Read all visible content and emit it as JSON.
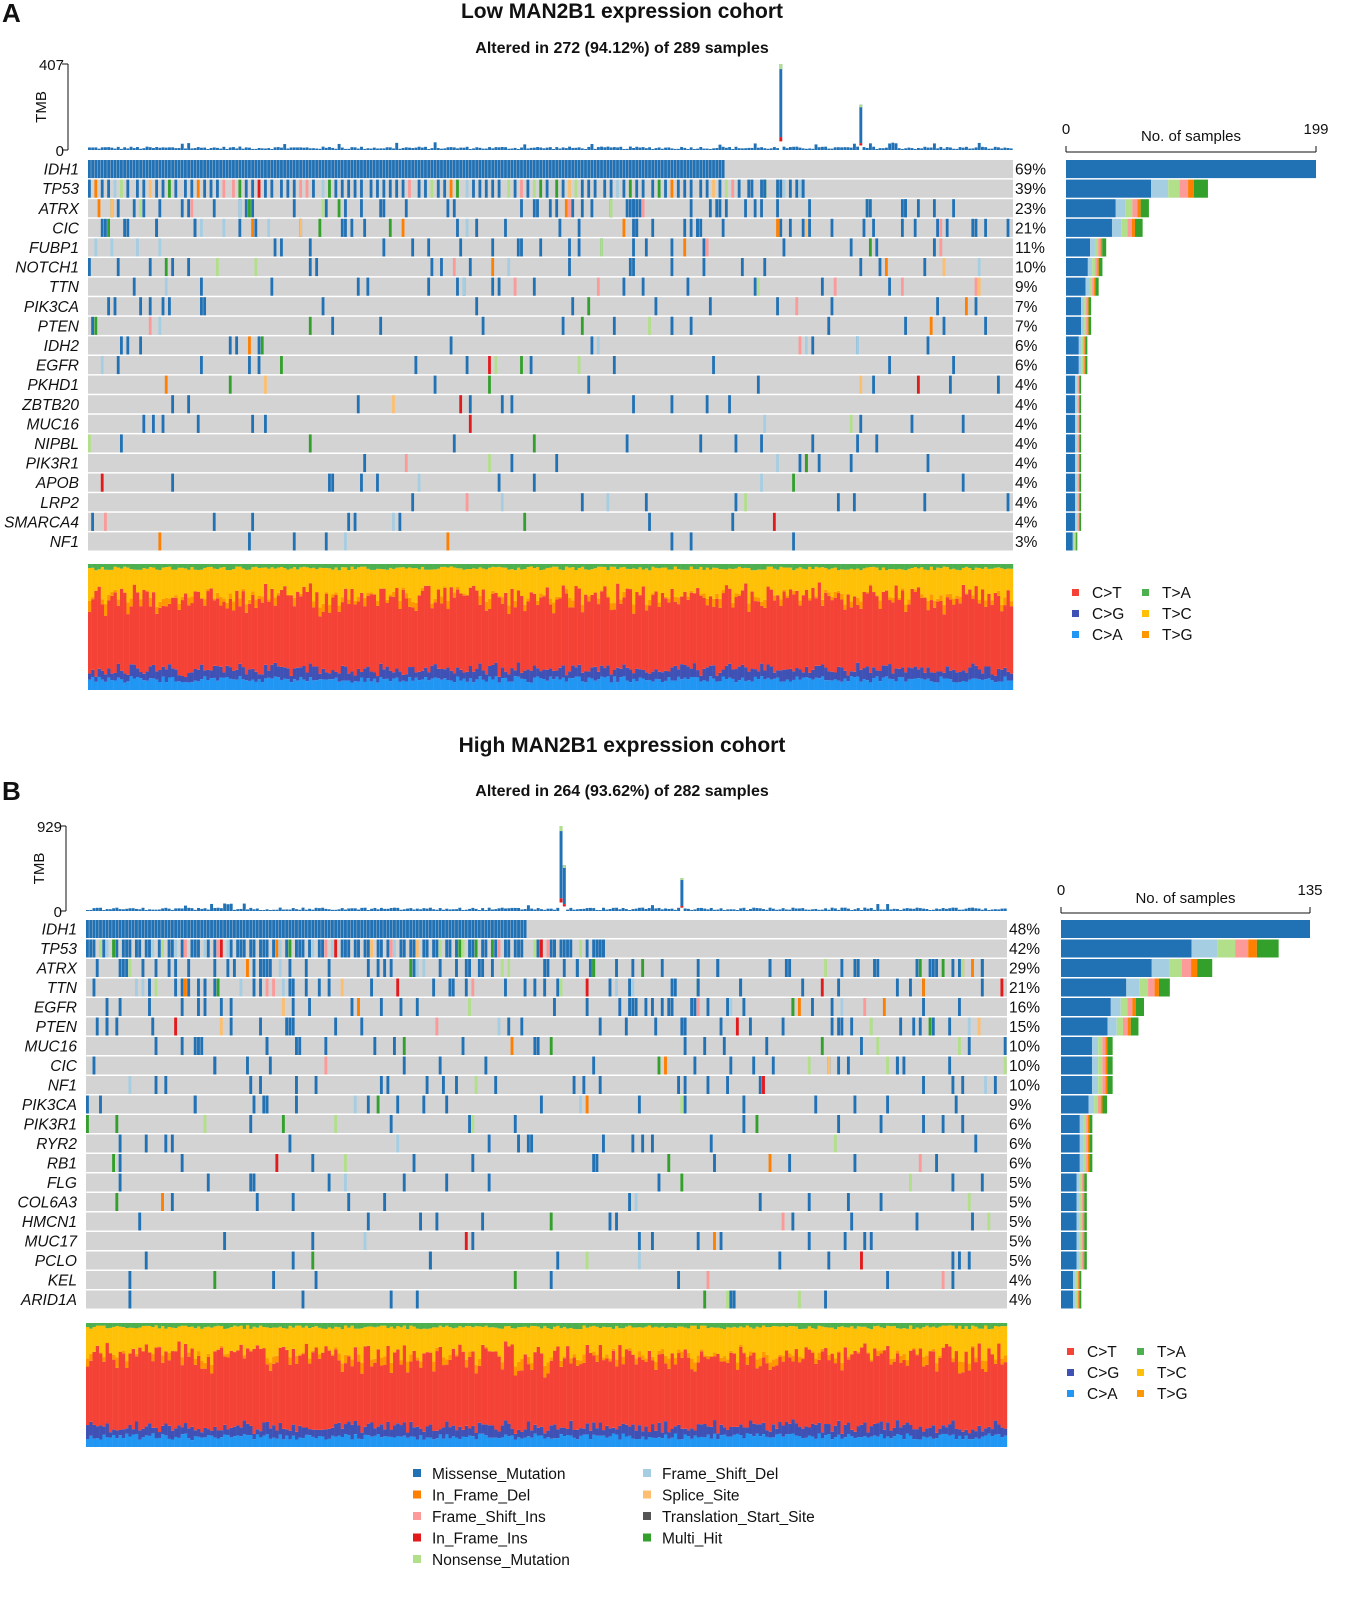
{
  "colors": {
    "Missense_Mutation": "#2171b5",
    "Frame_Shift_Del": "#a6cee3",
    "In_Frame_Del": "#ff7f00",
    "Splice_Site": "#fdbf6f",
    "Frame_Shift_Ins": "#fb9a99",
    "Translation_Start_Site": "#555555",
    "In_Frame_Ins": "#e31a1c",
    "Multi_Hit": "#33a02c",
    "Nonsense_Mutation": "#b2df8a",
    "C>T": "#f44336",
    "C>G": "#3f51b5",
    "C>A": "#2196f3",
    "T>A": "#4caf50",
    "T>C": "#ffc107",
    "T>G": "#ff9800",
    "empty": "#d3d3d3"
  },
  "chart_data": [
    {
      "type": "oncoplot",
      "panel_label": "A",
      "title": "Low MAN2B1 expression cohort",
      "subtitle": "Altered in 272 (94.12%) of 289 samples",
      "n_samples": 289,
      "tmb_axis": {
        "label": "TMB",
        "max_label": "407",
        "min_label": "0",
        "max": 407
      },
      "tmb_peaks": [
        {
          "sample": 216,
          "value": 407
        },
        {
          "sample": 241,
          "value": 215
        }
      ],
      "side_axis": {
        "label": "No. of samples",
        "min_label": "0",
        "max_label": "199",
        "max": 199
      },
      "genes": [
        {
          "name": "IDH1",
          "pct": "69%",
          "total": 199
        },
        {
          "name": "TP53",
          "pct": "39%",
          "total": 113
        },
        {
          "name": "ATRX",
          "pct": "23%",
          "total": 66
        },
        {
          "name": "CIC",
          "pct": "21%",
          "total": 61
        },
        {
          "name": "FUBP1",
          "pct": "11%",
          "total": 32
        },
        {
          "name": "NOTCH1",
          "pct": "10%",
          "total": 29
        },
        {
          "name": "TTN",
          "pct": "9%",
          "total": 26
        },
        {
          "name": "PIK3CA",
          "pct": "7%",
          "total": 20
        },
        {
          "name": "PTEN",
          "pct": "7%",
          "total": 20
        },
        {
          "name": "IDH2",
          "pct": "6%",
          "total": 17
        },
        {
          "name": "EGFR",
          "pct": "6%",
          "total": 17
        },
        {
          "name": "PKHD1",
          "pct": "4%",
          "total": 12
        },
        {
          "name": "ZBTB20",
          "pct": "4%",
          "total": 12
        },
        {
          "name": "MUC16",
          "pct": "4%",
          "total": 12
        },
        {
          "name": "NIPBL",
          "pct": "4%",
          "total": 12
        },
        {
          "name": "PIK3R1",
          "pct": "4%",
          "total": 12
        },
        {
          "name": "APOB",
          "pct": "4%",
          "total": 12
        },
        {
          "name": "LRP2",
          "pct": "4%",
          "total": 12
        },
        {
          "name": "SMARCA4",
          "pct": "4%",
          "total": 12
        },
        {
          "name": "NF1",
          "pct": "3%",
          "total": 9
        }
      ],
      "titv_legend": [
        [
          "C>T",
          "T>A"
        ],
        [
          "C>G",
          "T>C"
        ],
        [
          "C>A",
          "T>G"
        ]
      ]
    },
    {
      "type": "oncoplot",
      "panel_label": "B",
      "title": "High MAN2B1 expression cohort",
      "subtitle": "Altered in 264 (93.62%) of 282 samples",
      "n_samples": 282,
      "tmb_axis": {
        "label": "TMB",
        "max_label": "929",
        "min_label": "0",
        "max": 929
      },
      "tmb_peaks": [
        {
          "sample": 145,
          "value": 929
        },
        {
          "sample": 146,
          "value": 500
        },
        {
          "sample": 182,
          "value": 360
        }
      ],
      "side_axis": {
        "label": "No. of samples",
        "min_label": "0",
        "max_label": "135",
        "max": 135
      },
      "genes": [
        {
          "name": "IDH1",
          "pct": "48%",
          "total": 135
        },
        {
          "name": "TP53",
          "pct": "42%",
          "total": 118
        },
        {
          "name": "ATRX",
          "pct": "29%",
          "total": 82
        },
        {
          "name": "TTN",
          "pct": "21%",
          "total": 59
        },
        {
          "name": "EGFR",
          "pct": "16%",
          "total": 45
        },
        {
          "name": "PTEN",
          "pct": "15%",
          "total": 42
        },
        {
          "name": "MUC16",
          "pct": "10%",
          "total": 28
        },
        {
          "name": "CIC",
          "pct": "10%",
          "total": 28
        },
        {
          "name": "NF1",
          "pct": "10%",
          "total": 28
        },
        {
          "name": "PIK3CA",
          "pct": "9%",
          "total": 25
        },
        {
          "name": "PIK3R1",
          "pct": "6%",
          "total": 17
        },
        {
          "name": "RYR2",
          "pct": "6%",
          "total": 17
        },
        {
          "name": "RB1",
          "pct": "6%",
          "total": 17
        },
        {
          "name": "FLG",
          "pct": "5%",
          "total": 14
        },
        {
          "name": "COL6A3",
          "pct": "5%",
          "total": 14
        },
        {
          "name": "HMCN1",
          "pct": "5%",
          "total": 14
        },
        {
          "name": "MUC17",
          "pct": "5%",
          "total": 14
        },
        {
          "name": "PCLO",
          "pct": "5%",
          "total": 14
        },
        {
          "name": "KEL",
          "pct": "4%",
          "total": 11
        },
        {
          "name": "ARID1A",
          "pct": "4%",
          "total": 11
        }
      ],
      "titv_legend": [
        [
          "C>T",
          "T>A"
        ],
        [
          "C>G",
          "T>C"
        ],
        [
          "C>A",
          "T>G"
        ]
      ]
    }
  ],
  "variant_legend": [
    [
      "Missense_Mutation",
      "Frame_Shift_Del"
    ],
    [
      "In_Frame_Del",
      "Splice_Site"
    ],
    [
      "Frame_Shift_Ins",
      "Translation_Start_Site"
    ],
    [
      "In_Frame_Ins",
      "Multi_Hit"
    ],
    [
      "Nonsense_Mutation"
    ]
  ]
}
